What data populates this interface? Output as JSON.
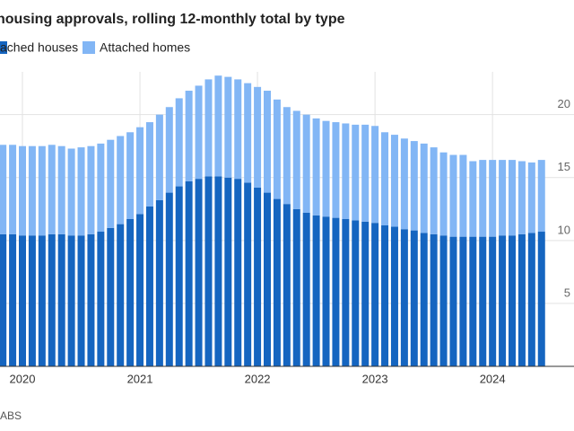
{
  "chart_data": {
    "type": "stacked-bar",
    "title": "housing approvals, rolling 12-monthly total by type",
    "source": "ABS",
    "categories": [
      null,
      null,
      "2020",
      null,
      null,
      null,
      null,
      null,
      null,
      null,
      null,
      null,
      null,
      null,
      "2021",
      null,
      null,
      null,
      null,
      null,
      null,
      null,
      null,
      null,
      null,
      null,
      "2022",
      null,
      null,
      null,
      null,
      null,
      null,
      null,
      null,
      null,
      null,
      null,
      "2023",
      null,
      null,
      null,
      null,
      null,
      null,
      null,
      null,
      null,
      null,
      null,
      "2024",
      null,
      null,
      null,
      null,
      null
    ],
    "series": [
      {
        "name": "ached houses",
        "color": "#1565c0",
        "values": [
          10.5,
          10.5,
          10.4,
          10.4,
          10.4,
          10.5,
          10.5,
          10.4,
          10.4,
          10.5,
          10.7,
          11.0,
          11.3,
          11.7,
          12.1,
          12.7,
          13.2,
          13.8,
          14.3,
          14.7,
          14.9,
          15.1,
          15.1,
          15.0,
          14.9,
          14.6,
          14.2,
          13.8,
          13.3,
          12.9,
          12.5,
          12.2,
          12.0,
          11.9,
          11.8,
          11.7,
          11.6,
          11.5,
          11.4,
          11.2,
          11.1,
          10.9,
          10.8,
          10.6,
          10.5,
          10.4,
          10.3,
          10.3,
          10.3,
          10.3,
          10.3,
          10.4,
          10.4,
          10.5,
          10.6,
          10.7
        ]
      },
      {
        "name": "Attached homes",
        "color": "#82b6f5",
        "values": [
          7.1,
          7.1,
          7.1,
          7.1,
          7.1,
          7.1,
          7.0,
          6.9,
          7.0,
          7.0,
          7.0,
          7.0,
          7.0,
          6.9,
          6.9,
          6.7,
          6.8,
          6.8,
          7.0,
          7.2,
          7.4,
          7.7,
          8.0,
          8.0,
          7.9,
          7.9,
          8.0,
          8.1,
          7.9,
          7.7,
          7.8,
          7.8,
          7.7,
          7.6,
          7.6,
          7.6,
          7.6,
          7.7,
          7.7,
          7.4,
          7.3,
          7.2,
          7.1,
          7.1,
          6.9,
          6.6,
          6.5,
          6.5,
          6.0,
          6.1,
          6.1,
          6.0,
          6.0,
          5.8,
          5.6,
          5.7
        ]
      }
    ],
    "ylim": [
      0,
      23.4
    ],
    "yticks": [
      5,
      10,
      15,
      20
    ],
    "grid": true
  }
}
